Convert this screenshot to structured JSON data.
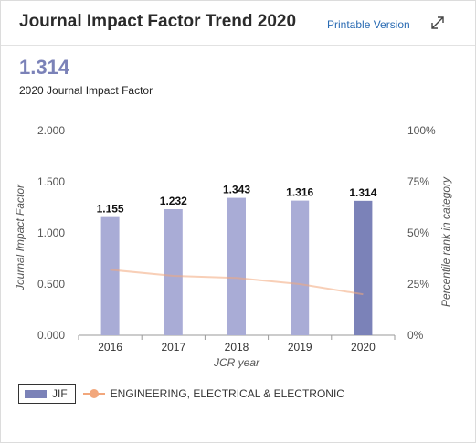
{
  "header": {
    "title": "Journal Impact Factor Trend 2020",
    "printable_label": "Printable Version",
    "expand_icon": "expand-icon"
  },
  "summary": {
    "value": "1.314",
    "label": "2020 Journal Impact Factor"
  },
  "legend": {
    "jif_label": "JIF",
    "category_label": "ENGINEERING, ELECTRICAL & ELECTRONIC"
  },
  "colors": {
    "bar": "#a9acd6",
    "bar_highlight": "#7b82b8",
    "percentile_line": "#f2a77c",
    "axis_text": "#555555"
  },
  "chart_data": {
    "type": "bar",
    "categories": [
      "2016",
      "2017",
      "2018",
      "2019",
      "2020"
    ],
    "series": [
      {
        "name": "JIF",
        "values": [
          1.155,
          1.232,
          1.343,
          1.316,
          1.314
        ],
        "axis": "left"
      },
      {
        "name": "ENGINEERING, ELECTRICAL & ELECTRONIC",
        "type": "line",
        "values": [
          32,
          29,
          28,
          25,
          20
        ],
        "axis": "right"
      }
    ],
    "data_labels": [
      "1.155",
      "1.232",
      "1.343",
      "1.316",
      "1.314"
    ],
    "highlighted_category": "2020",
    "xlabel": "JCR year",
    "ylabel": "Journal Impact Factor",
    "ylabel_right": "Percentile rank in category",
    "ylim": [
      0,
      2
    ],
    "ylim_right": [
      0,
      100
    ],
    "yticks": [
      "0.000",
      "0.500",
      "1.000",
      "1.500",
      "2.000"
    ],
    "yticks_right": [
      "0%",
      "25%",
      "50%",
      "75%",
      "100%"
    ],
    "grid": false,
    "legend_position": "bottom-left"
  }
}
